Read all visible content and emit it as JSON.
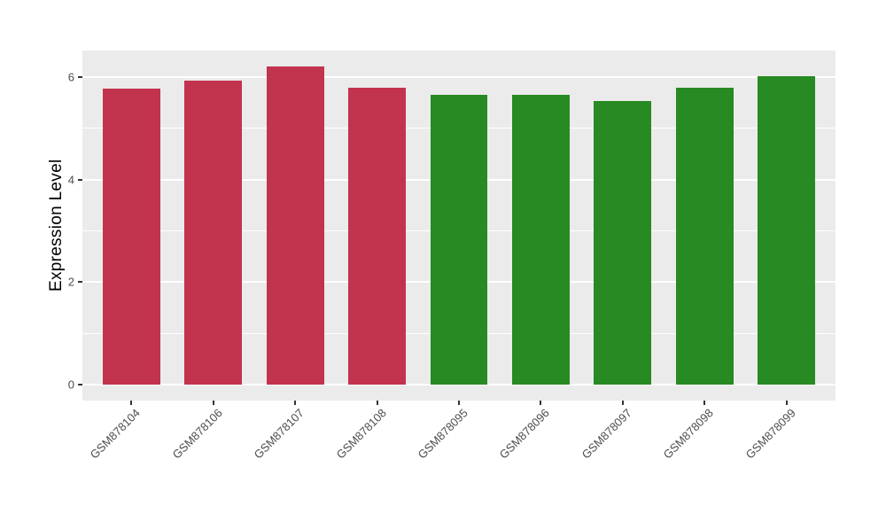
{
  "chart_data": {
    "type": "bar",
    "title": "",
    "xlabel": "",
    "ylabel": "Expression Level",
    "categories": [
      "GSM878104",
      "GSM878106",
      "GSM878107",
      "GSM878108",
      "GSM878095",
      "GSM878096",
      "GSM878097",
      "GSM878098",
      "GSM878099"
    ],
    "values": [
      5.77,
      5.93,
      6.21,
      5.8,
      5.66,
      5.66,
      5.54,
      5.8,
      6.01
    ],
    "bar_colors": [
      "#C2334D",
      "#C2334D",
      "#C2334D",
      "#C2334D",
      "#288A22",
      "#288A22",
      "#288A22",
      "#288A22",
      "#288A22"
    ],
    "ylim": [
      -0.31,
      6.52
    ],
    "yticks": [
      0,
      2,
      4,
      6
    ],
    "yticks_minor": [
      1,
      3,
      5
    ],
    "grid": true,
    "legend": false,
    "bar_width_fraction": 0.7,
    "panel_bg": "#EBEBEB",
    "grid_color": "#FFFFFF",
    "tick_mark_color": "#333333",
    "tick_label_color": "#4D4D4D",
    "axis_title_color": "#000000"
  }
}
